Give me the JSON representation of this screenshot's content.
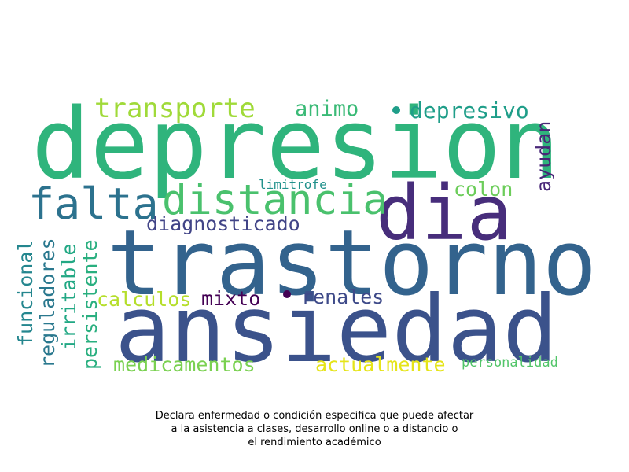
{
  "colors": {
    "background": "#ffffff",
    "depresion": "#2fb47c",
    "trastorno": "#33638d",
    "ansiedad": "#3b528b",
    "dia": "#472d7b",
    "falta": "#2c728e",
    "distancia": "#4ac16d",
    "transporte": "#a0da39",
    "animo": "#3aba76",
    "depresivo": "#1f9e89",
    "ayudan": "#482677",
    "limitrofe": "#21918c",
    "colon": "#6ccd5a",
    "diagnosticado": "#414487",
    "funcional": "#24868e",
    "reguladores": "#2a788e",
    "irritable": "#22a884",
    "persistente": "#29af7f",
    "calculos": "#b5de2b",
    "mixto": "#440154",
    "renales": "#3e4a89",
    "medicamentos": "#7ad151",
    "actualmente": "#e5e419",
    "personalidad": "#52c569"
  },
  "words": {
    "depresion": "depresion",
    "trastorno": "trastorno",
    "ansiedad": "ansiedad",
    "dia": "dia",
    "falta": "falta",
    "distancia": "distancia",
    "transporte": "transporte",
    "animo": "animo",
    "depresivo": "depresivo",
    "ayudan": "ayudan",
    "limitrofe": "limitrofe",
    "colon": "colon",
    "diagnosticado": "diagnosticado",
    "funcional": "funcional",
    "reguladores": "reguladores",
    "irritable": "irritable",
    "persistente": "persistente",
    "calculos": "calculos",
    "mixto": "mixto",
    "renales": "renales",
    "medicamentos": "medicamentos",
    "actualmente": "actualmente",
    "personalidad": "personalidad"
  },
  "caption": {
    "line1": "Declara enfermedad o condición especifica que puede afectar",
    "line2": "a la asistencia a clases, desarrollo online o a distancio o",
    "line3": "el rendimiento académico"
  }
}
